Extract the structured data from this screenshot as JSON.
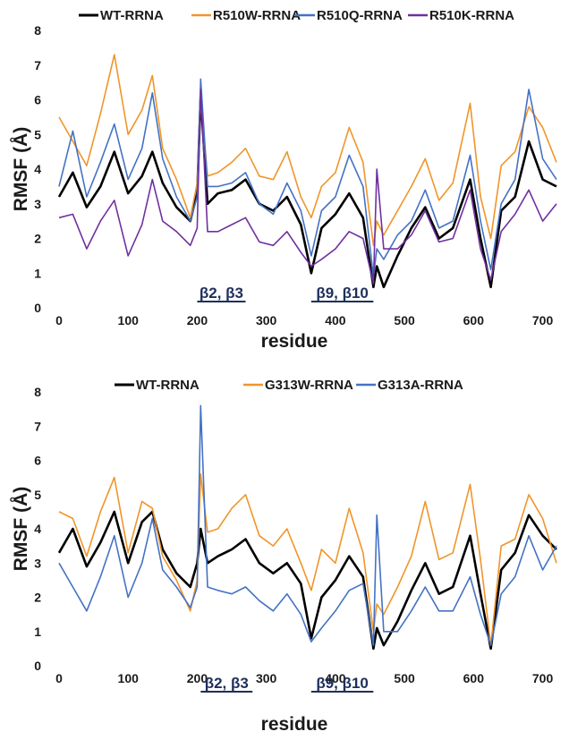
{
  "chart_data": [
    {
      "type": "line",
      "xlabel": "residue",
      "ylabel": "RMSF (Å)",
      "xlim": [
        0,
        720
      ],
      "ylim": [
        0,
        8
      ],
      "xticks": [
        "0",
        "100",
        "200",
        "300",
        "400",
        "500",
        "600",
        "700"
      ],
      "yticks": [
        "0",
        "1",
        "2",
        "3",
        "4",
        "5",
        "6",
        "7",
        "8"
      ],
      "grid": false,
      "legend": "top",
      "annotations": [
        {
          "text": "β2, β3",
          "x": 200,
          "x_end": 270
        },
        {
          "text": "β9, β10",
          "x": 365,
          "x_end": 455
        }
      ],
      "x": [
        0,
        20,
        40,
        60,
        80,
        100,
        120,
        135,
        150,
        170,
        190,
        200,
        205,
        215,
        230,
        250,
        270,
        290,
        310,
        330,
        350,
        365,
        380,
        400,
        420,
        440,
        455,
        460,
        470,
        490,
        510,
        530,
        550,
        570,
        595,
        610,
        625,
        640,
        660,
        680,
        700,
        720
      ],
      "series": [
        {
          "name": "WT-RRNA",
          "color": "#000000",
          "values": [
            3.2,
            3.9,
            2.9,
            3.5,
            4.5,
            3.3,
            3.8,
            4.5,
            3.6,
            2.9,
            2.5,
            3.3,
            6.1,
            3.0,
            3.3,
            3.4,
            3.7,
            3.0,
            2.8,
            3.2,
            2.4,
            1.0,
            2.3,
            2.7,
            3.3,
            2.6,
            0.6,
            1.2,
            0.6,
            1.5,
            2.3,
            2.9,
            2.0,
            2.3,
            3.7,
            2.0,
            0.6,
            2.8,
            3.2,
            4.8,
            3.7,
            3.5
          ]
        },
        {
          "name": "R510W-RRNA",
          "color": "#f0952a",
          "values": [
            5.5,
            4.8,
            4.1,
            5.6,
            7.3,
            5.0,
            5.7,
            6.7,
            4.6,
            3.7,
            2.6,
            3.6,
            6.0,
            3.8,
            3.9,
            4.2,
            4.6,
            3.8,
            3.7,
            4.5,
            3.2,
            2.6,
            3.5,
            3.9,
            5.2,
            4.2,
            1.8,
            2.5,
            2.1,
            2.8,
            3.5,
            4.3,
            3.1,
            3.6,
            5.9,
            3.2,
            2.0,
            4.1,
            4.5,
            5.8,
            5.2,
            4.2
          ]
        },
        {
          "name": "R510Q-RRNA",
          "color": "#4472c4",
          "values": [
            3.5,
            5.1,
            3.2,
            4.2,
            5.3,
            3.7,
            4.6,
            6.2,
            4.3,
            3.2,
            2.5,
            3.2,
            6.6,
            3.5,
            3.5,
            3.6,
            3.9,
            3.0,
            2.7,
            3.6,
            2.8,
            1.5,
            2.8,
            3.2,
            4.4,
            3.5,
            0.9,
            1.7,
            1.4,
            2.1,
            2.5,
            3.4,
            2.3,
            2.5,
            4.4,
            2.5,
            1.1,
            3.0,
            3.7,
            6.3,
            4.3,
            3.7
          ]
        },
        {
          "name": "R510K-RRNA",
          "color": "#7030a0",
          "values": [
            2.6,
            2.7,
            1.7,
            2.5,
            3.1,
            1.5,
            2.4,
            3.7,
            2.5,
            2.2,
            1.8,
            2.3,
            6.3,
            2.2,
            2.2,
            2.4,
            2.6,
            1.9,
            1.8,
            2.2,
            1.6,
            1.2,
            1.4,
            1.7,
            2.2,
            2.0,
            0.7,
            4.0,
            1.7,
            1.7,
            2.1,
            2.8,
            1.9,
            2.0,
            3.4,
            1.7,
            0.8,
            2.2,
            2.7,
            3.4,
            2.5,
            3.0
          ]
        }
      ]
    },
    {
      "type": "line",
      "xlabel": "residue",
      "ylabel": "RMSF (Å)",
      "xlim": [
        0,
        720
      ],
      "ylim": [
        0,
        8
      ],
      "xticks": [
        "0",
        "100",
        "200",
        "300",
        "400",
        "500",
        "600",
        "700"
      ],
      "yticks": [
        "0",
        "1",
        "2",
        "3",
        "4",
        "5",
        "6",
        "7",
        "8"
      ],
      "grid": false,
      "legend": "top",
      "annotations": [
        {
          "text": "β2, β3",
          "x": 205,
          "x_end": 280
        },
        {
          "text": "β9, β10",
          "x": 365,
          "x_end": 455
        }
      ],
      "x": [
        0,
        20,
        40,
        60,
        80,
        100,
        120,
        135,
        150,
        170,
        190,
        200,
        205,
        215,
        230,
        250,
        270,
        290,
        310,
        330,
        350,
        365,
        380,
        400,
        420,
        440,
        455,
        460,
        470,
        490,
        510,
        530,
        550,
        570,
        595,
        610,
        625,
        640,
        660,
        680,
        700,
        720
      ],
      "series": [
        {
          "name": "WT-RRNA",
          "color": "#000000",
          "values": [
            3.3,
            4.0,
            2.9,
            3.6,
            4.5,
            3.0,
            4.2,
            4.5,
            3.4,
            2.7,
            2.3,
            3.0,
            4.0,
            3.0,
            3.2,
            3.4,
            3.7,
            3.0,
            2.7,
            3.0,
            2.4,
            0.8,
            2.0,
            2.5,
            3.2,
            2.6,
            0.5,
            1.1,
            0.6,
            1.3,
            2.2,
            3.0,
            2.1,
            2.3,
            3.8,
            2.1,
            0.5,
            2.8,
            3.3,
            4.4,
            3.8,
            3.4
          ]
        },
        {
          "name": "G313W-RRNA",
          "color": "#f0952a",
          "values": [
            4.5,
            4.3,
            3.2,
            4.5,
            5.5,
            3.3,
            4.8,
            4.6,
            3.2,
            2.5,
            1.6,
            2.5,
            5.6,
            3.9,
            4.0,
            4.6,
            5.0,
            3.8,
            3.5,
            4.0,
            3.0,
            2.2,
            3.4,
            3.0,
            4.6,
            3.3,
            1.0,
            1.8,
            1.5,
            2.3,
            3.2,
            4.8,
            3.1,
            3.3,
            5.3,
            3.1,
            0.6,
            3.5,
            3.7,
            5.0,
            4.3,
            3.0
          ]
        },
        {
          "name": "G313A-RRNA",
          "color": "#4472c4",
          "values": [
            3.0,
            2.3,
            1.6,
            2.6,
            3.8,
            2.0,
            3.0,
            4.3,
            2.8,
            2.3,
            1.7,
            2.3,
            7.6,
            2.3,
            2.2,
            2.1,
            2.3,
            1.9,
            1.6,
            2.1,
            1.5,
            0.7,
            1.1,
            1.6,
            2.2,
            2.4,
            0.6,
            4.4,
            1.0,
            1.0,
            1.6,
            2.3,
            1.6,
            1.6,
            2.6,
            1.5,
            0.6,
            2.1,
            2.6,
            3.8,
            2.8,
            3.5
          ]
        }
      ]
    }
  ]
}
